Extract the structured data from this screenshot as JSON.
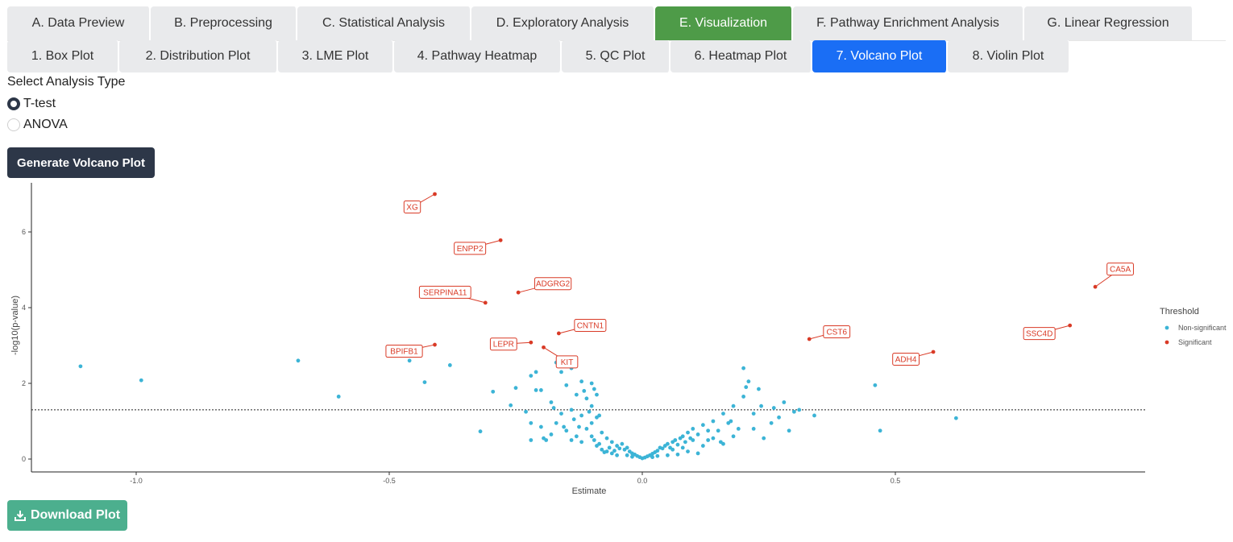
{
  "main_tabs": [
    {
      "label": "A. Data Preview",
      "active": false
    },
    {
      "label": "B. Preprocessing",
      "active": false
    },
    {
      "label": "C. Statistical Analysis",
      "active": false
    },
    {
      "label": "D. Exploratory Analysis",
      "active": false
    },
    {
      "label": "E. Visualization",
      "active": true
    },
    {
      "label": "F. Pathway Enrichment Analysis",
      "active": false
    },
    {
      "label": "G. Linear Regression",
      "active": false
    }
  ],
  "sub_tabs": [
    {
      "label": "1. Box Plot",
      "active": false
    },
    {
      "label": "2. Distribution Plot",
      "active": false
    },
    {
      "label": "3. LME Plot",
      "active": false
    },
    {
      "label": "4. Pathway Heatmap",
      "active": false
    },
    {
      "label": "5. QC Plot",
      "active": false
    },
    {
      "label": "6. Heatmap Plot",
      "active": false
    },
    {
      "label": "7. Volcano Plot",
      "active": true
    },
    {
      "label": "8. Violin Plot",
      "active": false
    }
  ],
  "analysis_type": {
    "label": "Select Analysis Type",
    "options": [
      {
        "label": "T-test",
        "selected": true
      },
      {
        "label": "ANOVA",
        "selected": false
      }
    ]
  },
  "generate_button": "Generate Volcano Plot",
  "download_button": "Download Plot",
  "icons": {
    "download": "download-icon"
  },
  "chart_data": {
    "type": "scatter",
    "title": "",
    "xlabel": "Estimate",
    "ylabel": "-log10(p-value)",
    "xlim": [
      -1.2,
      1.0
    ],
    "ylim": [
      -0.3,
      7.0
    ],
    "x_ticks": [
      -1.0,
      -0.5,
      0.0,
      0.5
    ],
    "x_tick_labels": [
      "-1.0",
      "-0.5",
      "0.0",
      "0.5"
    ],
    "y_ticks": [
      0,
      2,
      4,
      6
    ],
    "y_tick_labels": [
      "0",
      "2",
      "4",
      "6"
    ],
    "threshold_line_y": 1.3,
    "grid": false,
    "legend_title": "Threshold",
    "legend_placement": "right",
    "colors": {
      "Non-significant": "#3cb4d6",
      "Significant": "#d93a26",
      "label_border": "#d93a26"
    },
    "series": [
      {
        "name": "Non-significant",
        "points": [
          [
            -1.11,
            2.45
          ],
          [
            -0.99,
            2.08
          ],
          [
            -0.68,
            2.6
          ],
          [
            -0.6,
            1.65
          ],
          [
            -0.46,
            2.6
          ],
          [
            -0.43,
            2.03
          ],
          [
            -0.38,
            2.48
          ],
          [
            -0.32,
            0.73
          ],
          [
            -0.295,
            1.78
          ],
          [
            -0.26,
            1.42
          ],
          [
            -0.25,
            1.88
          ],
          [
            -0.22,
            2.2
          ],
          [
            -0.21,
            2.3
          ],
          [
            -0.2,
            1.82
          ],
          [
            -0.23,
            1.25
          ],
          [
            -0.22,
            0.95
          ],
          [
            -0.21,
            1.82
          ],
          [
            -0.17,
            2.55
          ],
          [
            -0.16,
            2.3
          ],
          [
            -0.14,
            2.4
          ],
          [
            -0.12,
            2.05
          ],
          [
            -0.1,
            2.0
          ],
          [
            -0.09,
            1.7
          ],
          [
            -0.1,
            1.4
          ],
          [
            -0.15,
            1.95
          ],
          [
            -0.13,
            1.7
          ],
          [
            -0.11,
            1.6
          ],
          [
            -0.14,
            1.3
          ],
          [
            -0.16,
            1.2
          ],
          [
            -0.18,
            1.5
          ],
          [
            -0.09,
            1.1
          ],
          [
            -0.1,
            0.95
          ],
          [
            -0.12,
            1.15
          ],
          [
            -0.11,
            0.8
          ],
          [
            -0.13,
            0.6
          ],
          [
            -0.15,
            0.75
          ],
          [
            -0.17,
            0.95
          ],
          [
            -0.19,
            0.5
          ],
          [
            -0.2,
            0.85
          ],
          [
            -0.22,
            0.5
          ],
          [
            -0.18,
            0.65
          ],
          [
            -0.14,
            0.5
          ],
          [
            -0.12,
            0.45
          ],
          [
            -0.1,
            0.6
          ],
          [
            -0.08,
            0.7
          ],
          [
            -0.07,
            0.55
          ],
          [
            -0.06,
            0.45
          ],
          [
            -0.05,
            0.35
          ],
          [
            -0.045,
            0.28
          ],
          [
            -0.04,
            0.4
          ],
          [
            -0.035,
            0.25
          ],
          [
            -0.03,
            0.3
          ],
          [
            -0.025,
            0.2
          ],
          [
            -0.02,
            0.15
          ],
          [
            -0.015,
            0.12
          ],
          [
            -0.01,
            0.08
          ],
          [
            -0.005,
            0.05
          ],
          [
            0.0,
            0.02
          ],
          [
            0.005,
            0.04
          ],
          [
            0.01,
            0.07
          ],
          [
            0.015,
            0.1
          ],
          [
            0.02,
            0.14
          ],
          [
            0.025,
            0.18
          ],
          [
            0.03,
            0.22
          ],
          [
            0.035,
            0.3
          ],
          [
            0.04,
            0.28
          ],
          [
            0.045,
            0.35
          ],
          [
            0.05,
            0.4
          ],
          [
            0.055,
            0.3
          ],
          [
            0.06,
            0.45
          ],
          [
            0.065,
            0.5
          ],
          [
            0.07,
            0.38
          ],
          [
            0.075,
            0.55
          ],
          [
            0.08,
            0.6
          ],
          [
            0.085,
            0.45
          ],
          [
            0.09,
            0.7
          ],
          [
            0.095,
            0.55
          ],
          [
            0.1,
            0.8
          ],
          [
            0.11,
            0.65
          ],
          [
            0.12,
            0.9
          ],
          [
            0.13,
            0.5
          ],
          [
            0.14,
            1.0
          ],
          [
            0.15,
            0.75
          ],
          [
            0.16,
            1.2
          ],
          [
            0.17,
            0.95
          ],
          [
            0.18,
            1.4
          ],
          [
            0.19,
            0.8
          ],
          [
            0.2,
            1.65
          ],
          [
            0.2,
            2.4
          ],
          [
            0.21,
            2.05
          ],
          [
            0.22,
            1.2
          ],
          [
            0.23,
            1.85
          ],
          [
            0.24,
            0.55
          ],
          [
            0.26,
            1.35
          ],
          [
            0.27,
            1.1
          ],
          [
            0.28,
            1.5
          ],
          [
            0.29,
            0.75
          ],
          [
            0.3,
            1.25
          ],
          [
            0.31,
            1.3
          ],
          [
            0.22,
            0.8
          ],
          [
            0.18,
            0.6
          ],
          [
            0.14,
            0.55
          ],
          [
            0.12,
            0.35
          ],
          [
            0.16,
            0.4
          ],
          [
            0.13,
            0.75
          ],
          [
            0.1,
            0.5
          ],
          [
            0.08,
            0.3
          ],
          [
            0.06,
            0.25
          ],
          [
            0.09,
            0.2
          ],
          [
            0.11,
            0.15
          ],
          [
            0.07,
            0.12
          ],
          [
            0.05,
            0.1
          ],
          [
            -0.05,
            0.1
          ],
          [
            -0.06,
            0.15
          ],
          [
            -0.07,
            0.2
          ],
          [
            -0.08,
            0.25
          ],
          [
            -0.09,
            0.35
          ],
          [
            -0.095,
            0.5
          ],
          [
            -0.085,
            0.4
          ],
          [
            -0.065,
            0.3
          ],
          [
            -0.055,
            0.22
          ],
          [
            -0.075,
            0.18
          ],
          [
            -0.03,
            0.1
          ],
          [
            -0.02,
            0.06
          ],
          [
            0.02,
            0.05
          ],
          [
            0.03,
            0.08
          ],
          [
            0.34,
            1.15
          ],
          [
            0.46,
            1.95
          ],
          [
            0.47,
            0.75
          ],
          [
            0.62,
            1.08
          ],
          [
            0.205,
            1.9
          ],
          [
            0.175,
            1.0
          ],
          [
            0.155,
            0.45
          ],
          [
            -0.105,
            1.25
          ],
          [
            -0.115,
            1.8
          ],
          [
            -0.135,
            1.05
          ],
          [
            -0.155,
            0.85
          ],
          [
            -0.175,
            1.35
          ],
          [
            -0.195,
            0.55
          ],
          [
            -0.125,
            0.85
          ],
          [
            -0.085,
            1.15
          ],
          [
            -0.095,
            1.85
          ],
          [
            0.255,
            0.95
          ],
          [
            0.235,
            1.4
          ]
        ]
      },
      {
        "name": "Significant",
        "points": [
          [
            -0.41,
            7.0,
            "XG"
          ],
          [
            -0.28,
            5.78,
            "ENPP2"
          ],
          [
            -0.31,
            4.13,
            "SERPINA11"
          ],
          [
            -0.245,
            4.4,
            "ADGRG2"
          ],
          [
            -0.165,
            3.32,
            "CNTN1"
          ],
          [
            -0.22,
            3.08,
            "LEPR"
          ],
          [
            -0.195,
            2.95,
            "KIT"
          ],
          [
            -0.41,
            3.02,
            "BPIFB1"
          ],
          [
            0.33,
            3.17,
            "CST6"
          ],
          [
            0.575,
            2.83,
            "ADH4"
          ],
          [
            0.845,
            3.53,
            "SSC4D"
          ],
          [
            0.895,
            4.55,
            "CA5A"
          ]
        ]
      }
    ],
    "labels": [
      {
        "text": "XG"
      },
      {
        "text": "ENPP2"
      },
      {
        "text": "SERPINA11"
      },
      {
        "text": "ADGRG2"
      },
      {
        "text": "CNTN1"
      },
      {
        "text": "LEPR"
      },
      {
        "text": "KIT"
      },
      {
        "text": "BPIFB1"
      },
      {
        "text": "CST6"
      },
      {
        "text": "ADH4"
      },
      {
        "text": "SSC4D"
      },
      {
        "text": "CA5A"
      }
    ]
  }
}
